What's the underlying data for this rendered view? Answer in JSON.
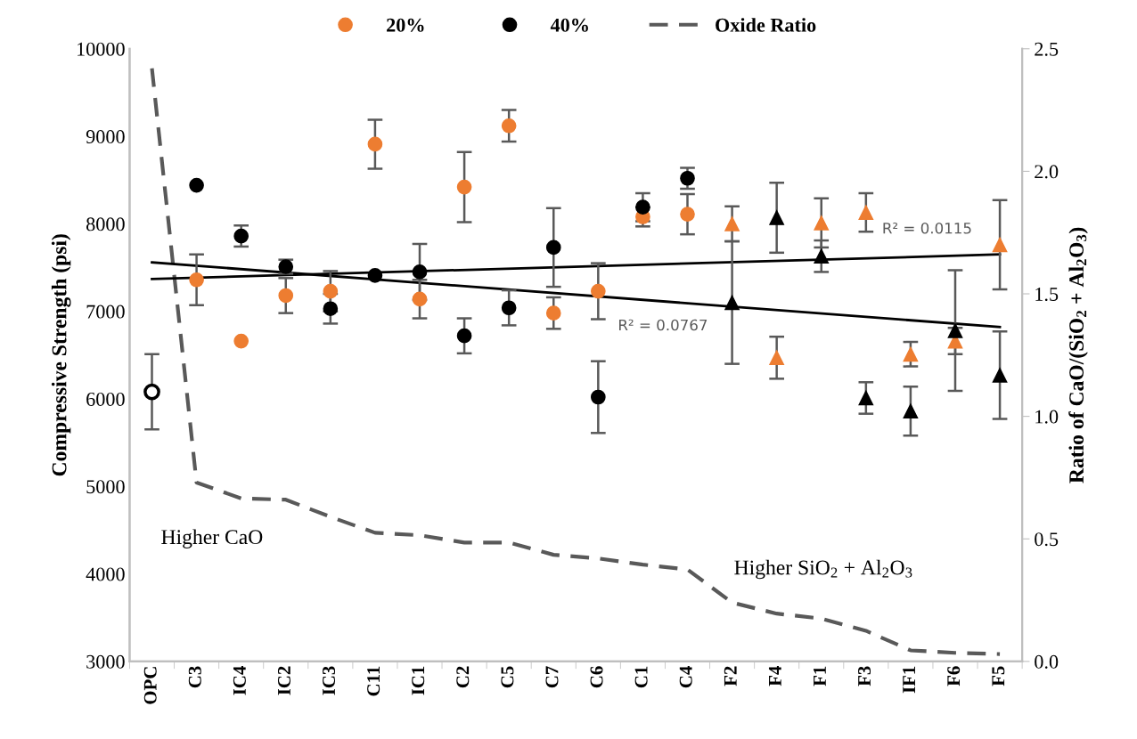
{
  "chart_data": {
    "type": "scatter",
    "categories": [
      "OPC",
      "C3",
      "IC4",
      "IC2",
      "IC3",
      "C11",
      "IC1",
      "C2",
      "C5",
      "C7",
      "C6",
      "C1",
      "C4",
      "F2",
      "F4",
      "F1",
      "F3",
      "IF1",
      "F6",
      "F5"
    ],
    "ylabel": "Compressive Strength (psi)",
    "y2label": "Ratio of CaO/(SiO$_{2}$ + Al$_{2}$O$_{3}$)",
    "ylim": [
      3000,
      10000
    ],
    "yticks": [
      3000,
      4000,
      5000,
      6000,
      7000,
      8000,
      9000,
      10000
    ],
    "y2lim": [
      0,
      2.5
    ],
    "y2ticks": [
      {
        "value": 0,
        "label": "0.0"
      },
      {
        "value": 0.5,
        "label": "0.5"
      },
      {
        "value": 1.0,
        "label": "1.0"
      },
      {
        "value": 1.5,
        "label": "1.5"
      },
      {
        "value": 2.0,
        "label": "2.0"
      },
      {
        "value": 2.5,
        "label": "2.5"
      }
    ],
    "grid": false,
    "legend": "top",
    "series": [
      {
        "type": "line",
        "color": "#000000",
        "line_style": "solid",
        "marker": "none",
        "x": [
          "OPC",
          "F5"
        ],
        "values": [
          7560,
          6820
        ]
      },
      {
        "type": "line",
        "color": "#000000",
        "line_style": "solid",
        "marker": "none",
        "x": [
          "OPC",
          "F5"
        ],
        "values": [
          7370,
          7650
        ]
      },
      {
        "name": "20%",
        "color": "#ed7d31",
        "marker": "circle",
        "values": [
          null,
          7360,
          6660,
          7180,
          7230,
          8910,
          7140,
          8420,
          9120,
          6980,
          7230,
          8080,
          8110,
          null,
          null,
          null,
          null,
          null,
          null,
          null
        ],
        "errors": [
          null,
          290,
          null,
          200,
          230,
          280,
          220,
          400,
          180,
          180,
          320,
          110,
          230,
          null,
          null,
          null,
          null,
          null,
          null,
          null
        ]
      },
      {
        "color": "#ed7d31",
        "marker": "triangle",
        "values": [
          null,
          null,
          null,
          null,
          null,
          null,
          null,
          null,
          null,
          null,
          null,
          null,
          null,
          8000,
          6470,
          8010,
          8130,
          6510,
          6660,
          7760
        ],
        "errors": [
          null,
          null,
          null,
          null,
          null,
          null,
          null,
          null,
          null,
          null,
          null,
          null,
          null,
          200,
          240,
          280,
          220,
          140,
          150,
          510
        ]
      },
      {
        "name": "40%",
        "color": "#000000",
        "marker": "circle",
        "values": [
          null,
          8440,
          7860,
          7510,
          7030,
          7410,
          7450,
          6720,
          7040,
          7730,
          6020,
          8190,
          8520,
          null,
          null,
          null,
          null,
          null,
          null,
          null
        ],
        "errors": [
          null,
          null,
          120,
          80,
          170,
          null,
          320,
          200,
          200,
          450,
          410,
          160,
          120,
          null,
          null,
          null,
          null,
          null,
          null,
          null
        ]
      },
      {
        "color": "#000000",
        "marker": "triangle",
        "values": [
          null,
          null,
          null,
          null,
          null,
          null,
          null,
          null,
          null,
          null,
          null,
          null,
          null,
          7100,
          8070,
          7630,
          6010,
          5860,
          6780,
          6270
        ],
        "errors": [
          null,
          null,
          null,
          null,
          null,
          null,
          null,
          null,
          null,
          null,
          null,
          null,
          null,
          700,
          400,
          180,
          180,
          280,
          690,
          500
        ]
      },
      {
        "color": "#000000",
        "marker": "hollow circle",
        "values": [
          6080,
          null,
          null,
          null,
          null,
          null,
          null,
          null,
          null,
          null,
          null,
          null,
          null,
          null,
          null,
          null,
          null,
          null,
          null,
          null
        ],
        "errors": [
          430,
          null,
          null,
          null,
          null,
          null,
          null,
          null,
          null,
          null,
          null,
          null,
          null,
          null,
          null,
          null,
          null,
          null,
          null,
          null
        ]
      },
      {
        "type": "line",
        "axis": "y2",
        "name": "Oxide Ratio",
        "color": "#595959",
        "line_style": "dashed",
        "marker": "none",
        "values": [
          2.42,
          0.73,
          0.665,
          0.66,
          0.59,
          0.525,
          0.515,
          0.485,
          0.485,
          0.435,
          0.42,
          0.395,
          0.375,
          0.24,
          0.195,
          0.175,
          0.125,
          0.045,
          0.035,
          0.03
        ]
      }
    ],
    "annotations": [
      "Higher CaO",
      "Higher SiO$_{2}$ + Al$_{2}$O$_{3}$",
      "R² = 0.0767",
      "R² = 0.0115"
    ]
  }
}
